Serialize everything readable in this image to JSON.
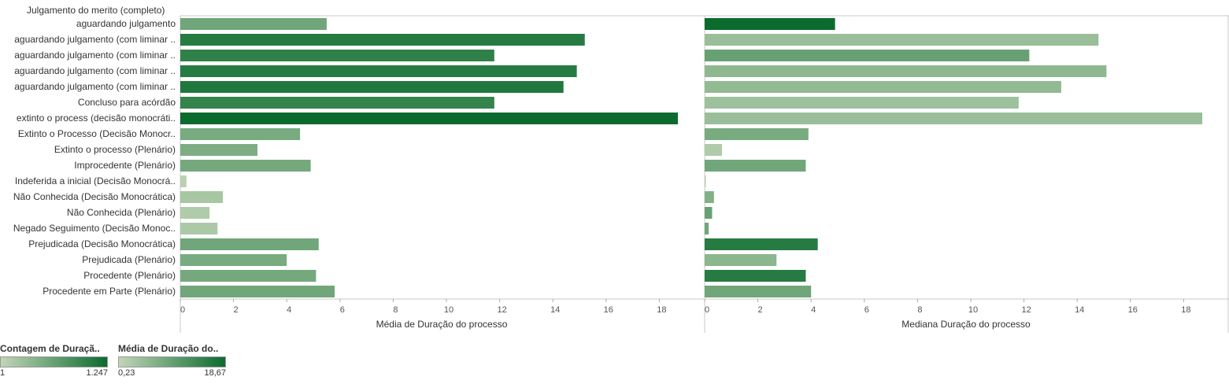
{
  "chart_data": {
    "type": "bar",
    "orientation": "horizontal",
    "header": "Julgamento do merito (completo)",
    "categories": [
      "aguardando julgamento",
      "aguardando julgamento (com liminar ..",
      "aguardando julgamento (com liminar ..",
      "aguardando julgamento (com liminar ..",
      "aguardando julgamento (com liminar ..",
      "Concluso para acórdão",
      "extinto o process (decisão monocráti..",
      "Extinto o Processo (Decisão Monocr..",
      "Extinto o processo (Plenário)",
      "Improcedente (Plenário)",
      "Indeferida a inicial (Decisão Monocrá..",
      "Não Conhecida (Decisão Monocrática)",
      "Não Conhecida (Plenário)",
      "Negado Seguimento (Decisão Monoc..",
      "Prejudicada (Decisão Monocrática)",
      "Prejudicada (Plenário)",
      "Procedente (Plenário)",
      "Procedente em Parte (Plenário)"
    ],
    "panels": [
      {
        "xlabel": "Média de Duração do processo",
        "xlim": [
          0,
          19.5
        ],
        "ticks": [
          0,
          2,
          4,
          6,
          8,
          10,
          12,
          14,
          16,
          18
        ],
        "values": [
          5.5,
          15.2,
          11.8,
          14.9,
          14.4,
          11.8,
          18.7,
          4.5,
          2.9,
          4.9,
          0.23,
          1.6,
          1.1,
          1.4,
          5.2,
          4.0,
          5.1,
          5.8
        ],
        "color_intensity": [
          0.45,
          0.85,
          0.8,
          0.85,
          0.88,
          0.78,
          1.0,
          0.4,
          0.38,
          0.42,
          0.05,
          0.15,
          0.1,
          0.12,
          0.45,
          0.4,
          0.42,
          0.45
        ]
      },
      {
        "xlabel": "Mediana Duração do processo",
        "xlim": [
          0,
          19.5
        ],
        "ticks": [
          0,
          2,
          4,
          6,
          8,
          10,
          12,
          14,
          16,
          18
        ],
        "values": [
          4.9,
          14.8,
          12.2,
          15.1,
          13.4,
          11.8,
          18.7,
          3.9,
          0.65,
          3.8,
          0.05,
          0.35,
          0.28,
          0.15,
          4.25,
          2.7,
          3.8,
          4.0
        ],
        "color_intensity": [
          1.0,
          0.22,
          0.5,
          0.28,
          0.26,
          0.2,
          0.22,
          0.4,
          0.1,
          0.45,
          0.02,
          0.35,
          0.5,
          0.45,
          0.85,
          0.3,
          0.85,
          0.45
        ]
      }
    ],
    "legends": [
      {
        "title": "Contagem de Duraçã..",
        "min": "1",
        "max": "1.247"
      },
      {
        "title": "Média de Duração do..",
        "min": "0,23",
        "max": "18,67"
      }
    ],
    "colors": {
      "low": "#c2d6b7",
      "high": "#0b6b2e"
    },
    "grid": false
  }
}
